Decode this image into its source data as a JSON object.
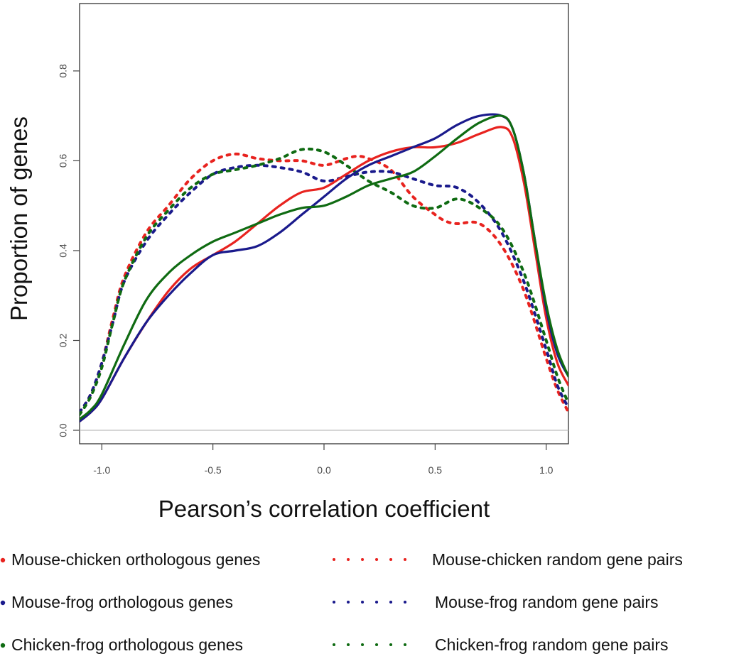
{
  "chart_data": {
    "type": "line",
    "xlabel": "Pearson’s correlation coefficient",
    "ylabel": "Proportion of genes",
    "xlim": [
      -1.1,
      1.1
    ],
    "ylim": [
      -0.03,
      0.95
    ],
    "xticks": [
      {
        "value": -1.0,
        "label": "-1.0"
      },
      {
        "value": -0.5,
        "label": "-0.5"
      },
      {
        "value": 0.0,
        "label": "0.0"
      },
      {
        "value": 0.5,
        "label": "0.5"
      },
      {
        "value": 1.0,
        "label": "1.0"
      }
    ],
    "yticks": [
      {
        "value": 0.0,
        "label": "0.0"
      },
      {
        "value": 0.2,
        "label": "0.2"
      },
      {
        "value": 0.4,
        "label": "0.4"
      },
      {
        "value": 0.6,
        "label": "0.6"
      },
      {
        "value": 0.8,
        "label": "0.8"
      }
    ],
    "reference_line_y": 0.0,
    "grid": false,
    "legend_position": "bottom",
    "series": [
      {
        "name": "Mouse-chicken orthologous genes",
        "color": "#e8231f",
        "style": "solid",
        "points": [
          [
            -1.1,
            0.02
          ],
          [
            -1.05,
            0.04
          ],
          [
            -1.0,
            0.07
          ],
          [
            -0.9,
            0.16
          ],
          [
            -0.8,
            0.24
          ],
          [
            -0.7,
            0.31
          ],
          [
            -0.6,
            0.36
          ],
          [
            -0.5,
            0.39
          ],
          [
            -0.4,
            0.42
          ],
          [
            -0.3,
            0.46
          ],
          [
            -0.2,
            0.5
          ],
          [
            -0.1,
            0.53
          ],
          [
            0.0,
            0.54
          ],
          [
            0.1,
            0.57
          ],
          [
            0.2,
            0.6
          ],
          [
            0.3,
            0.62
          ],
          [
            0.4,
            0.63
          ],
          [
            0.5,
            0.63
          ],
          [
            0.6,
            0.64
          ],
          [
            0.7,
            0.66
          ],
          [
            0.8,
            0.675
          ],
          [
            0.85,
            0.65
          ],
          [
            0.9,
            0.55
          ],
          [
            0.95,
            0.4
          ],
          [
            1.0,
            0.25
          ],
          [
            1.05,
            0.15
          ],
          [
            1.1,
            0.1
          ]
        ]
      },
      {
        "name": "Mouse-frog orthologous genes",
        "color": "#1a1a8c",
        "style": "solid",
        "points": [
          [
            -1.1,
            0.02
          ],
          [
            -1.05,
            0.04
          ],
          [
            -1.0,
            0.07
          ],
          [
            -0.9,
            0.16
          ],
          [
            -0.8,
            0.24
          ],
          [
            -0.7,
            0.3
          ],
          [
            -0.6,
            0.35
          ],
          [
            -0.5,
            0.39
          ],
          [
            -0.4,
            0.4
          ],
          [
            -0.3,
            0.41
          ],
          [
            -0.2,
            0.44
          ],
          [
            -0.1,
            0.48
          ],
          [
            0.0,
            0.52
          ],
          [
            0.1,
            0.56
          ],
          [
            0.2,
            0.59
          ],
          [
            0.3,
            0.61
          ],
          [
            0.4,
            0.63
          ],
          [
            0.5,
            0.65
          ],
          [
            0.6,
            0.68
          ],
          [
            0.7,
            0.7
          ],
          [
            0.8,
            0.7
          ],
          [
            0.85,
            0.67
          ],
          [
            0.9,
            0.57
          ],
          [
            0.95,
            0.42
          ],
          [
            1.0,
            0.27
          ],
          [
            1.05,
            0.17
          ],
          [
            1.1,
            0.12
          ]
        ]
      },
      {
        "name": "Chicken-frog orthologous genes",
        "color": "#0f6b12",
        "style": "solid",
        "points": [
          [
            -1.1,
            0.025
          ],
          [
            -1.05,
            0.045
          ],
          [
            -1.0,
            0.08
          ],
          [
            -0.9,
            0.19
          ],
          [
            -0.8,
            0.29
          ],
          [
            -0.7,
            0.35
          ],
          [
            -0.6,
            0.39
          ],
          [
            -0.5,
            0.42
          ],
          [
            -0.4,
            0.44
          ],
          [
            -0.3,
            0.46
          ],
          [
            -0.2,
            0.48
          ],
          [
            -0.1,
            0.495
          ],
          [
            0.0,
            0.5
          ],
          [
            0.1,
            0.52
          ],
          [
            0.2,
            0.545
          ],
          [
            0.3,
            0.56
          ],
          [
            0.4,
            0.575
          ],
          [
            0.5,
            0.61
          ],
          [
            0.6,
            0.65
          ],
          [
            0.7,
            0.685
          ],
          [
            0.8,
            0.7
          ],
          [
            0.85,
            0.67
          ],
          [
            0.9,
            0.57
          ],
          [
            0.95,
            0.42
          ],
          [
            1.0,
            0.28
          ],
          [
            1.05,
            0.18
          ],
          [
            1.1,
            0.12
          ]
        ]
      },
      {
        "name": "Mouse-chicken random gene pairs",
        "color": "#e8231f",
        "style": "dotted",
        "points": [
          [
            -1.1,
            0.04
          ],
          [
            -1.05,
            0.08
          ],
          [
            -1.0,
            0.15
          ],
          [
            -0.95,
            0.25
          ],
          [
            -0.9,
            0.34
          ],
          [
            -0.8,
            0.44
          ],
          [
            -0.7,
            0.5
          ],
          [
            -0.6,
            0.56
          ],
          [
            -0.5,
            0.6
          ],
          [
            -0.4,
            0.615
          ],
          [
            -0.3,
            0.605
          ],
          [
            -0.2,
            0.6
          ],
          [
            -0.1,
            0.6
          ],
          [
            0.0,
            0.59
          ],
          [
            0.1,
            0.605
          ],
          [
            0.15,
            0.61
          ],
          [
            0.2,
            0.605
          ],
          [
            0.3,
            0.58
          ],
          [
            0.4,
            0.52
          ],
          [
            0.5,
            0.48
          ],
          [
            0.55,
            0.465
          ],
          [
            0.6,
            0.46
          ],
          [
            0.7,
            0.46
          ],
          [
            0.8,
            0.41
          ],
          [
            0.9,
            0.31
          ],
          [
            1.0,
            0.16
          ],
          [
            1.05,
            0.09
          ],
          [
            1.1,
            0.04
          ]
        ]
      },
      {
        "name": "Mouse-frog random gene pairs",
        "color": "#1a1a8c",
        "style": "dotted",
        "points": [
          [
            -1.1,
            0.04
          ],
          [
            -1.05,
            0.08
          ],
          [
            -1.0,
            0.15
          ],
          [
            -0.95,
            0.24
          ],
          [
            -0.9,
            0.33
          ],
          [
            -0.8,
            0.42
          ],
          [
            -0.7,
            0.48
          ],
          [
            -0.6,
            0.53
          ],
          [
            -0.5,
            0.57
          ],
          [
            -0.4,
            0.585
          ],
          [
            -0.3,
            0.59
          ],
          [
            -0.2,
            0.585
          ],
          [
            -0.1,
            0.575
          ],
          [
            0.0,
            0.555
          ],
          [
            0.1,
            0.565
          ],
          [
            0.2,
            0.575
          ],
          [
            0.3,
            0.575
          ],
          [
            0.4,
            0.56
          ],
          [
            0.5,
            0.545
          ],
          [
            0.6,
            0.54
          ],
          [
            0.7,
            0.505
          ],
          [
            0.8,
            0.44
          ],
          [
            0.9,
            0.33
          ],
          [
            1.0,
            0.18
          ],
          [
            1.05,
            0.1
          ],
          [
            1.1,
            0.05
          ]
        ]
      },
      {
        "name": "Chicken-frog random gene pairs",
        "color": "#0f6b12",
        "style": "dotted",
        "points": [
          [
            -1.1,
            0.035
          ],
          [
            -1.05,
            0.075
          ],
          [
            -1.0,
            0.14
          ],
          [
            -0.95,
            0.24
          ],
          [
            -0.9,
            0.33
          ],
          [
            -0.8,
            0.43
          ],
          [
            -0.7,
            0.49
          ],
          [
            -0.6,
            0.54
          ],
          [
            -0.5,
            0.57
          ],
          [
            -0.4,
            0.58
          ],
          [
            -0.3,
            0.59
          ],
          [
            -0.2,
            0.605
          ],
          [
            -0.1,
            0.625
          ],
          [
            0.0,
            0.62
          ],
          [
            0.1,
            0.59
          ],
          [
            0.2,
            0.555
          ],
          [
            0.3,
            0.53
          ],
          [
            0.4,
            0.5
          ],
          [
            0.5,
            0.495
          ],
          [
            0.6,
            0.515
          ],
          [
            0.7,
            0.495
          ],
          [
            0.8,
            0.45
          ],
          [
            0.9,
            0.35
          ],
          [
            1.0,
            0.2
          ],
          [
            1.05,
            0.12
          ],
          [
            1.1,
            0.06
          ]
        ]
      }
    ]
  }
}
